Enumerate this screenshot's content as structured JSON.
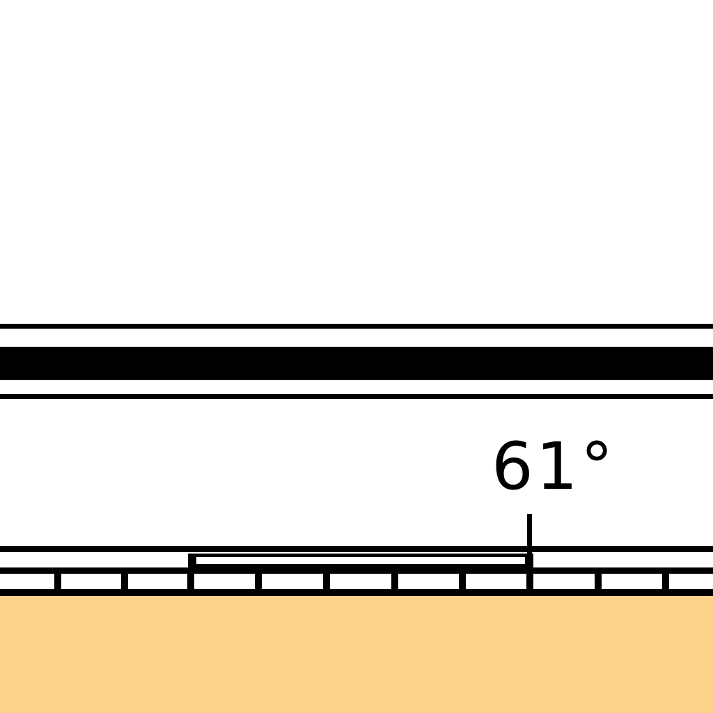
{
  "map": {
    "angle_label": "61°",
    "colors": {
      "background": "#ffffff",
      "ink": "#000000",
      "land_fill": "#fed48c"
    },
    "features": {
      "double_line_band": "road",
      "segmented_strip": "dashed-boundary",
      "fill_area": "sand-area",
      "tick_mark": "angle-pointer"
    }
  }
}
